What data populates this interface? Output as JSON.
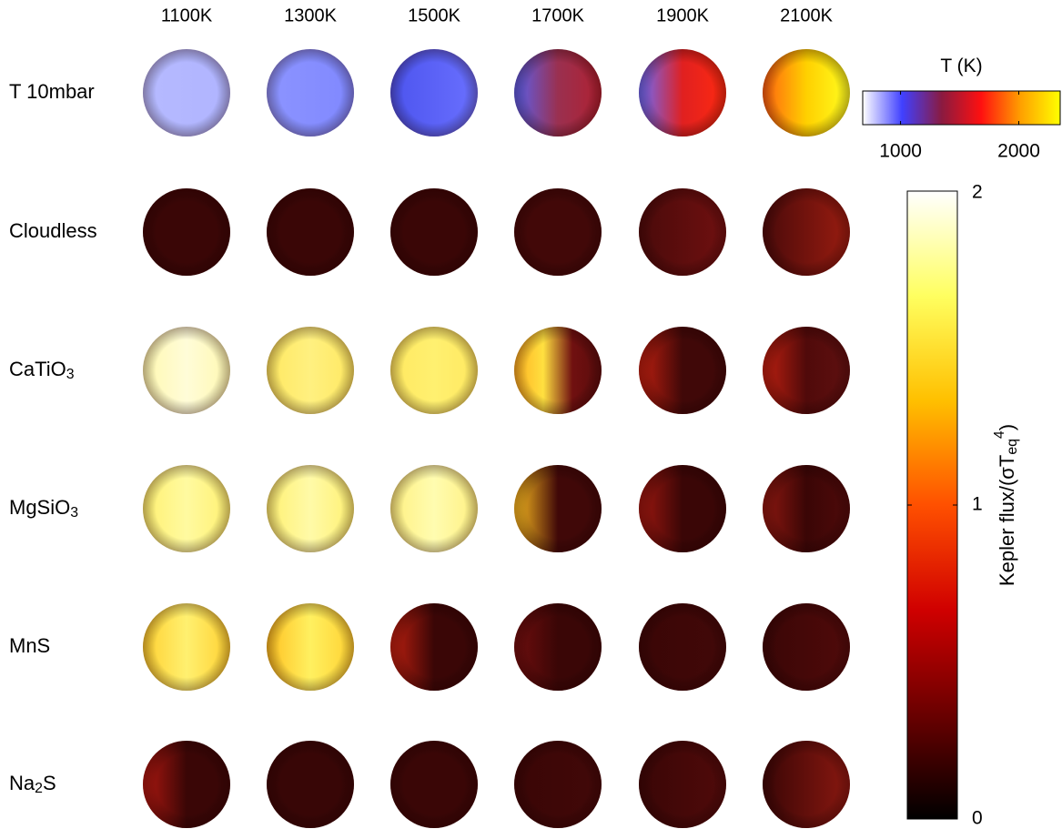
{
  "chart_data": {
    "type": "image-grid",
    "columns": [
      "1100K",
      "1300K",
      "1500K",
      "1700K",
      "1900K",
      "2100K"
    ],
    "rows": [
      {
        "label": [
          {
            "text": "T 10mbar"
          }
        ],
        "cells": [
          [
            "#b6baff",
            "#b0b4ff"
          ],
          [
            "#8c94ff",
            "#8088ff"
          ],
          [
            "#4c54ee",
            "#6a70ff"
          ],
          [
            "#5a60ee",
            "#9a3050",
            "#b02030"
          ],
          [
            "#6a6cff",
            "#e02020",
            "#ff2a10"
          ],
          [
            "#ff6010",
            "#ffd000",
            "#ffff20"
          ]
        ]
      },
      {
        "label": [
          {
            "text": "Cloudless"
          }
        ],
        "cells": [
          [
            "#3a0606",
            "#3a0606"
          ],
          [
            "#3a0606",
            "#3a0606"
          ],
          [
            "#3a0606",
            "#3a0606"
          ],
          [
            "#420808",
            "#420808"
          ],
          [
            "#4a0a0a",
            "#701010"
          ],
          [
            "#4a0a0a",
            "#9a1c10"
          ]
        ]
      },
      {
        "label": [
          {
            "text": "CaTiO"
          },
          {
            "text": "3",
            "shift": "sub"
          }
        ],
        "cells": [
          [
            "#fff8b0",
            "#fffcd8",
            "#fff8b0"
          ],
          [
            "#ffe860",
            "#fff080",
            "#ffe860"
          ],
          [
            "#ffe860",
            "#fff070",
            "#ffe860"
          ],
          [
            "#ffb020",
            "#ffe040",
            "#701010",
            "#5a0c0c"
          ],
          [
            "#c02010",
            "#400808",
            "#400808"
          ],
          [
            "#c02010",
            "#500a0a",
            "#601010"
          ]
        ]
      },
      {
        "label": [
          {
            "text": "MgSiO"
          },
          {
            "text": "3",
            "shift": "sub"
          }
        ],
        "cells": [
          [
            "#fff070",
            "#fffaa0",
            "#fff070"
          ],
          [
            "#fff070",
            "#fffaa8",
            "#fff070"
          ],
          [
            "#fff080",
            "#fffcb0",
            "#fff080"
          ],
          [
            "#ffc020",
            "#400808",
            "#400808"
          ],
          [
            "#a01810",
            "#3a0606",
            "#3a0606"
          ],
          [
            "#901810",
            "#3a0606",
            "#500a0a"
          ]
        ]
      },
      {
        "label": [
          {
            "text": "MnS"
          }
        ],
        "cells": [
          [
            "#ffd030",
            "#fff070",
            "#ffd030"
          ],
          [
            "#ffc020",
            "#fff060",
            "#ffd030"
          ],
          [
            "#c02010",
            "#3a0606",
            "#3a0606"
          ],
          [
            "#700e0e",
            "#3a0606",
            "#3a0606"
          ],
          [
            "#3a0606",
            "#420808"
          ],
          [
            "#3a0606",
            "#500a0a"
          ]
        ]
      },
      {
        "label": [
          {
            "text": "Na"
          },
          {
            "text": "2",
            "shift": "sub"
          },
          {
            "text": "S"
          }
        ],
        "cells": [
          [
            "#b01810",
            "#3a0606",
            "#3a0606"
          ],
          [
            "#380606",
            "#380606"
          ],
          [
            "#3a0606",
            "#3a0606"
          ],
          [
            "#3a0606",
            "#420808"
          ],
          [
            "#3a0606",
            "#500a0a"
          ],
          [
            "#3a0606",
            "#8a1810"
          ]
        ]
      }
    ],
    "colorbars": [
      {
        "label": [
          {
            "text": "T (K)"
          }
        ],
        "orientation": "horizontal",
        "colors": [
          "#ffffff",
          "#4040ff",
          "#8a1a40",
          "#ff1010",
          "#ffa000",
          "#ffff00"
        ],
        "xlim": [
          680,
          2350
        ],
        "xticks": [
          1000,
          2000
        ]
      },
      {
        "label": [
          {
            "text": "Kepler flux/(σT"
          },
          {
            "text": "eq",
            "shift": "sub"
          },
          {
            "text": "4",
            "shift": "super"
          },
          {
            "text": ")"
          }
        ],
        "orientation": "vertical",
        "colors": [
          "#000000",
          "#6a0000",
          "#d00000",
          "#ff5000",
          "#ffc000",
          "#ffff60",
          "#ffffff"
        ],
        "ylim": [
          0,
          2
        ],
        "yticks": [
          0,
          1,
          2
        ]
      }
    ]
  }
}
